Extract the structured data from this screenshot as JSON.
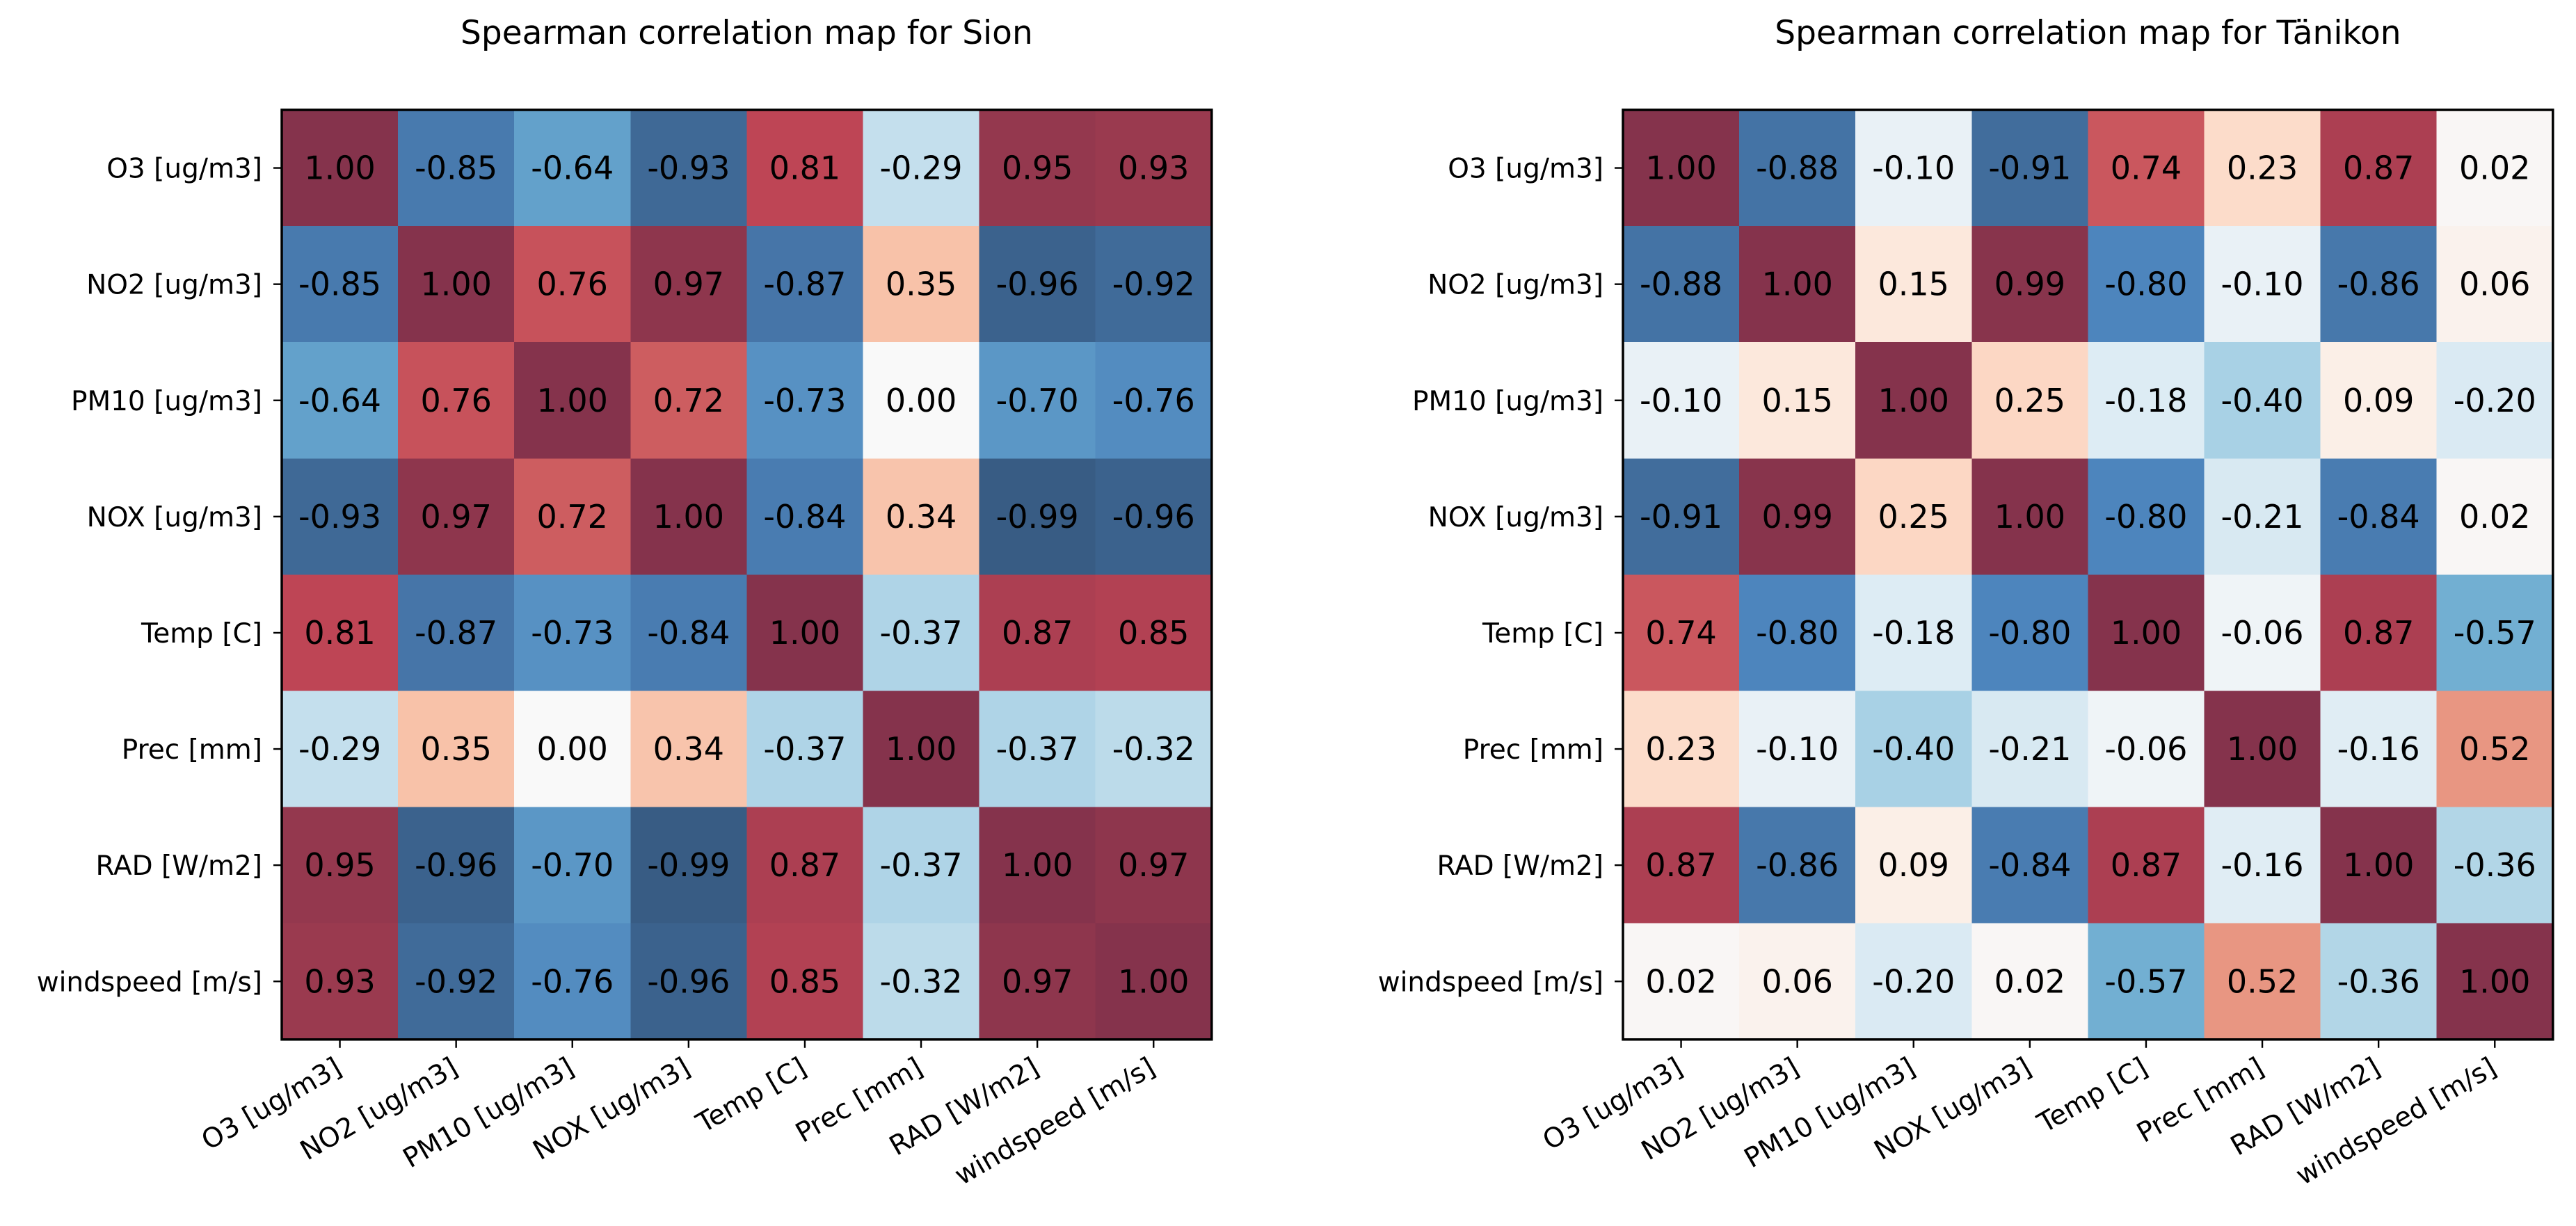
{
  "chart_data": [
    {
      "type": "heatmap",
      "title": "Spearman correlation map for Sion",
      "variables": [
        "O3 [ug/m3]",
        "NO2 [ug/m3]",
        "PM10 [ug/m3]",
        "NOX [ug/m3]",
        "Temp [C]",
        "Prec [mm]",
        "RAD [W/m2]",
        "windspeed [m/s]"
      ],
      "values": [
        [
          "1.00",
          "-0.85",
          "-0.64",
          "-0.93",
          "0.81",
          "-0.29",
          "0.95",
          "0.93"
        ],
        [
          "-0.85",
          "1.00",
          "0.76",
          "0.97",
          "-0.87",
          "0.35",
          "-0.96",
          "-0.92"
        ],
        [
          "-0.64",
          "0.76",
          "1.00",
          "0.72",
          "-0.73",
          "0.00",
          "-0.70",
          "-0.76"
        ],
        [
          "-0.93",
          "0.97",
          "0.72",
          "1.00",
          "-0.84",
          "0.34",
          "-0.99",
          "-0.96"
        ],
        [
          "0.81",
          "-0.87",
          "-0.73",
          "-0.84",
          "1.00",
          "-0.37",
          "0.87",
          "0.85"
        ],
        [
          "-0.29",
          "0.35",
          "0.00",
          "0.34",
          "-0.37",
          "1.00",
          "-0.37",
          "-0.32"
        ],
        [
          "0.95",
          "-0.96",
          "-0.70",
          "-0.99",
          "0.87",
          "-0.37",
          "1.00",
          "0.97"
        ],
        [
          "0.93",
          "-0.92",
          "-0.76",
          "-0.96",
          "0.85",
          "-0.32",
          "0.97",
          "1.00"
        ]
      ],
      "value_range": [
        -1,
        1
      ],
      "colormap": "RdBu_r",
      "cell_alpha": 0.8,
      "grid": false,
      "legend": "none"
    },
    {
      "type": "heatmap",
      "title": "Spearman correlation map for Tänikon",
      "variables": [
        "O3 [ug/m3]",
        "NO2 [ug/m3]",
        "PM10 [ug/m3]",
        "NOX [ug/m3]",
        "Temp [C]",
        "Prec [mm]",
        "RAD [W/m2]",
        "windspeed [m/s]"
      ],
      "values": [
        [
          "1.00",
          "-0.88",
          "-0.10",
          "-0.91",
          "0.74",
          "0.23",
          "0.87",
          "0.02"
        ],
        [
          "-0.88",
          "1.00",
          "0.15",
          "0.99",
          "-0.80",
          "-0.10",
          "-0.86",
          "0.06"
        ],
        [
          "-0.10",
          "0.15",
          "1.00",
          "0.25",
          "-0.18",
          "-0.40",
          "0.09",
          "-0.20"
        ],
        [
          "-0.91",
          "0.99",
          "0.25",
          "1.00",
          "-0.80",
          "-0.21",
          "-0.84",
          "0.02"
        ],
        [
          "0.74",
          "-0.80",
          "-0.18",
          "-0.80",
          "1.00",
          "-0.06",
          "0.87",
          "-0.57"
        ],
        [
          "0.23",
          "-0.10",
          "-0.40",
          "-0.21",
          "-0.06",
          "1.00",
          "-0.16",
          "0.52"
        ],
        [
          "0.87",
          "-0.86",
          "0.09",
          "-0.84",
          "0.87",
          "-0.16",
          "1.00",
          "-0.36"
        ],
        [
          "0.02",
          "0.06",
          "-0.20",
          "0.02",
          "-0.57",
          "0.52",
          "-0.36",
          "1.00"
        ]
      ],
      "value_range": [
        -1,
        1
      ],
      "colormap": "RdBu_r",
      "cell_alpha": 0.8,
      "grid": false,
      "legend": "none"
    }
  ]
}
